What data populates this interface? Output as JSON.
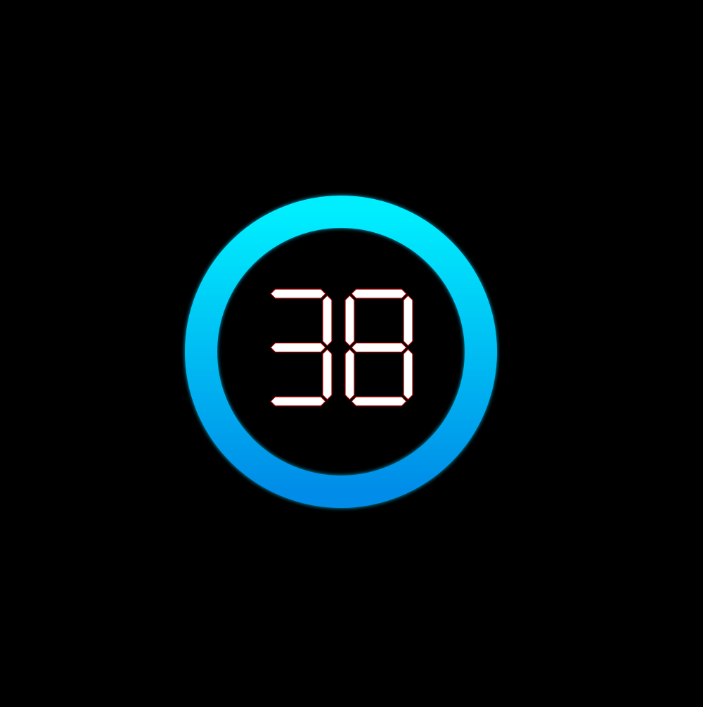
{
  "display": {
    "value": "38",
    "label": "countdown-display"
  },
  "ring": {
    "gradient_top": "#00eefe",
    "gradient_bottom": "#008ce8",
    "glow": "#0bb8e6"
  },
  "digits": {
    "fill": "#ffffff",
    "stroke": "#a20000"
  }
}
